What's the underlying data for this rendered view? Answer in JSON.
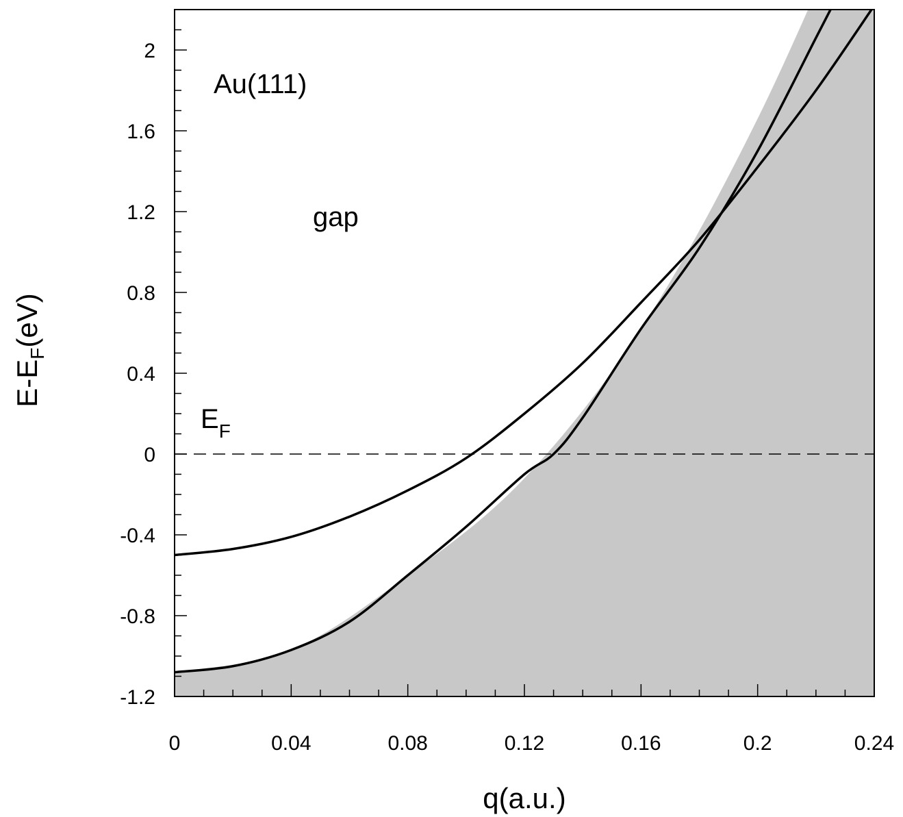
{
  "chart_data": {
    "type": "line",
    "xlabel": "q(a.u.)",
    "ylabel": {
      "main": "E-E",
      "sub": "F",
      "tail": "(eV)"
    },
    "xlim": [
      0,
      0.24
    ],
    "ylim": [
      -1.2,
      2.2
    ],
    "x_ticks": [
      "0",
      "0.04",
      "0.08",
      "0.12",
      "0.16",
      "0.2",
      "0.24"
    ],
    "y_ticks": [
      "-1.2",
      "-0.8",
      "-0.4",
      "0",
      "0.4",
      "0.8",
      "1.2",
      "1.6",
      "2"
    ],
    "grid": false,
    "annotations": {
      "material": "Au(111)",
      "gap": "gap",
      "fermi_main": "E",
      "fermi_sub": "F"
    },
    "fermi_level": 0,
    "shaded_region": {
      "description_role": "bulk continuum below projected band edge",
      "color": "#c8c8c8",
      "edge": {
        "x": [
          0,
          0.04,
          0.08,
          0.12,
          0.16,
          0.2,
          0.24
        ],
        "y": [
          -1.08,
          -0.97,
          -0.6,
          -0.12,
          0.62,
          1.66,
          2.95
        ]
      }
    },
    "series": [
      {
        "x": [
          0,
          0.02,
          0.04,
          0.06,
          0.08,
          0.1,
          0.12,
          0.14,
          0.16,
          0.18,
          0.2,
          0.22,
          0.24
        ],
        "y": [
          -0.5,
          -0.47,
          -0.41,
          -0.31,
          -0.18,
          -0.02,
          0.2,
          0.45,
          0.75,
          1.06,
          1.42,
          1.8,
          2.22
        ]
      },
      {
        "x": [
          0,
          0.02,
          0.04,
          0.06,
          0.08,
          0.1,
          0.12,
          0.13,
          0.14,
          0.16,
          0.18,
          0.2,
          0.22,
          0.225
        ],
        "y": [
          -1.08,
          -1.05,
          -0.97,
          -0.83,
          -0.6,
          -0.36,
          -0.1,
          0.0,
          0.18,
          0.62,
          1.02,
          1.5,
          2.06,
          2.2
        ]
      }
    ],
    "colors": {
      "line": "#000000",
      "fill": "#c8c8c8",
      "background": "#ffffff"
    }
  }
}
